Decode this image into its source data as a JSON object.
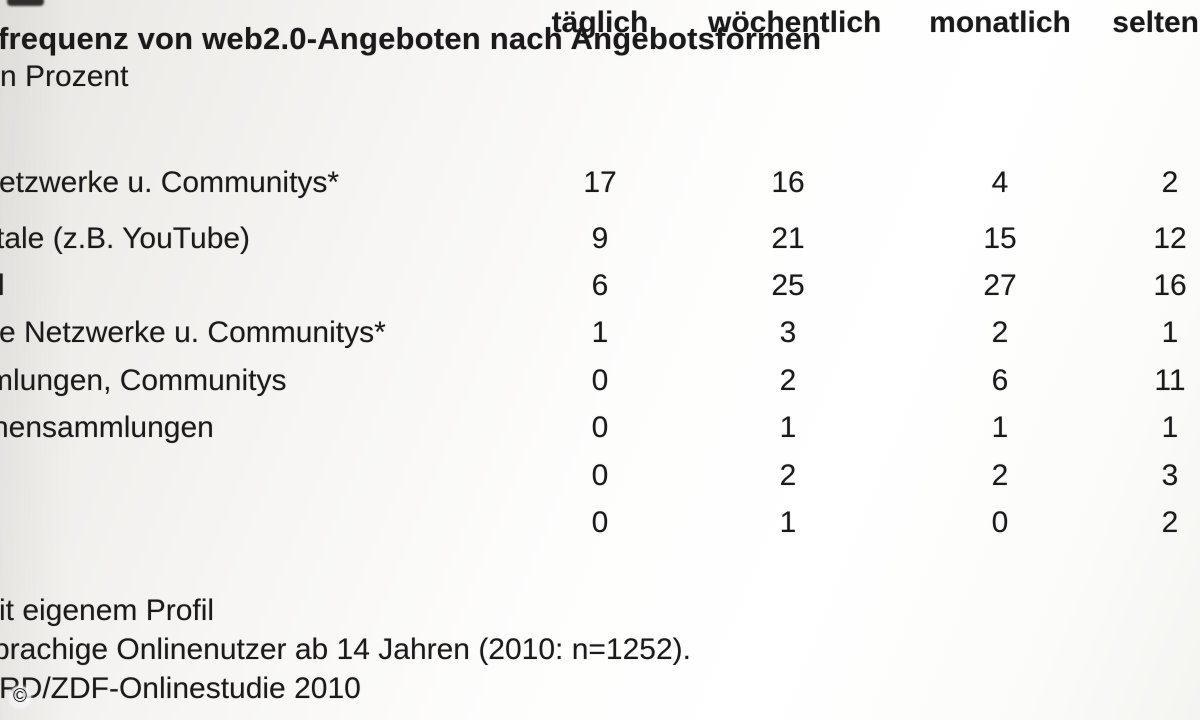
{
  "slide": {
    "copyright_mark": "©"
  },
  "chart_data": {
    "type": "table",
    "title": "frequenz von web2.0-Angeboten nach Angebotsformen",
    "subtitle": "n Prozent",
    "unit": "Prozent",
    "columns": [
      "täglich",
      "wöchentlich",
      "monatlich",
      "selten"
    ],
    "rows": [
      {
        "label": "etzwerke u. Communitys*",
        "values": [
          "17",
          "16",
          "4",
          "2"
        ]
      },
      {
        "label": "tale (z.B. YouTube)",
        "values": [
          "9",
          "21",
          "15",
          "12"
        ]
      },
      {
        "label": "l",
        "values": [
          "6",
          "25",
          "27",
          "16"
        ]
      },
      {
        "label": "e Netzwerke u. Communitys*",
        "values": [
          "1",
          "3",
          "2",
          "1"
        ]
      },
      {
        "label": "mlungen, Communitys",
        "values": [
          "0",
          "2",
          "6",
          "11"
        ]
      },
      {
        "label": "hensammlungen",
        "values": [
          "0",
          "1",
          "1",
          "1"
        ]
      },
      {
        "label": "",
        "values": [
          "0",
          "2",
          "2",
          "3"
        ]
      },
      {
        "label": "",
        "values": [
          "0",
          "1",
          "0",
          "2"
        ]
      }
    ],
    "notes": [
      "it eigenem Profil",
      "prachige Onlinenutzer ab 14 Jahren (2010: n=1252).",
      "RD/ZDF-Onlinestudie 2010"
    ]
  },
  "colors": {
    "text": "#1a1a1a",
    "background_shade": "#e7e6e3",
    "background_light": "#ffffff"
  }
}
